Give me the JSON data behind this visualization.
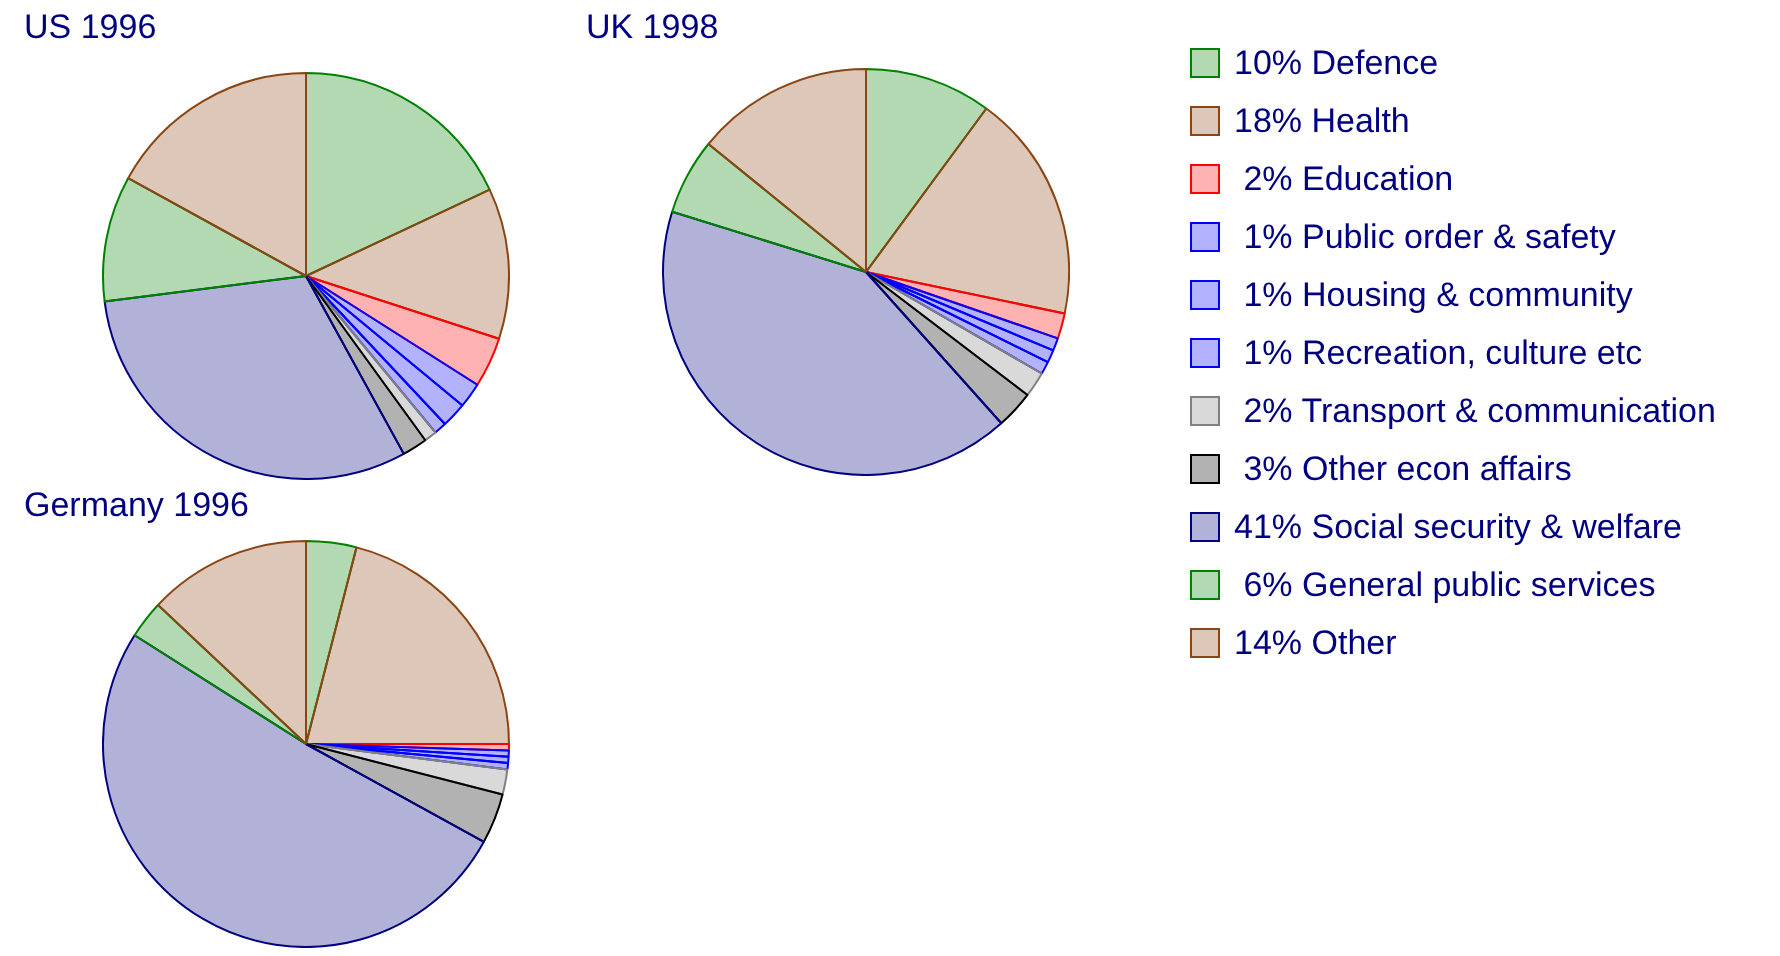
{
  "chart_data": [
    {
      "type": "pie",
      "title": "US 1996",
      "categories": [
        null,
        null,
        null,
        null,
        null,
        null,
        null,
        null,
        null,
        null,
        null
      ],
      "values": [
        18,
        12,
        4,
        2,
        2,
        1,
        1,
        2,
        31,
        10,
        17
      ],
      "colors": [
        "#008000",
        "#8b4513",
        "#ff0000",
        "#0000ff",
        "#0000ff",
        "#0000ff",
        "#808080",
        "#000000",
        "#000080",
        "#008000",
        "#8b4513"
      ],
      "legend": false
    },
    {
      "type": "pie",
      "title": "UK 1998",
      "categories": [
        "10% Defence",
        "18% Health",
        " 2% Education",
        " 1% Public order & safety",
        " 1% Housing & community",
        " 1% Recreation, culture etc",
        " 2% Transport & communication",
        " 3% Other econ affairs",
        "41% Social security & welfare",
        " 6% General public services",
        "14% Other"
      ],
      "values": [
        10,
        18,
        2,
        1,
        1,
        1,
        2,
        3,
        41,
        6,
        14
      ],
      "colors": [
        "#008000",
        "#8b4513",
        "#ff0000",
        "#0000ff",
        "#0000ff",
        "#0000ff",
        "#808080",
        "#000000",
        "#000080",
        "#008000",
        "#8b4513"
      ],
      "legend": "right"
    },
    {
      "type": "pie",
      "title": "Germany 1996",
      "categories": [
        null,
        null,
        null,
        null,
        null,
        null,
        null,
        null,
        null,
        null,
        null
      ],
      "values": [
        4,
        21,
        0.5,
        0.5,
        0.5,
        0.5,
        2,
        4,
        51,
        3,
        13
      ],
      "colors": [
        "#008000",
        "#8b4513",
        "#ff0000",
        "#0000ff",
        "#0000ff",
        "#0000ff",
        "#808080",
        "#000000",
        "#000080",
        "#008000",
        "#8b4513"
      ],
      "legend": false
    }
  ]
}
